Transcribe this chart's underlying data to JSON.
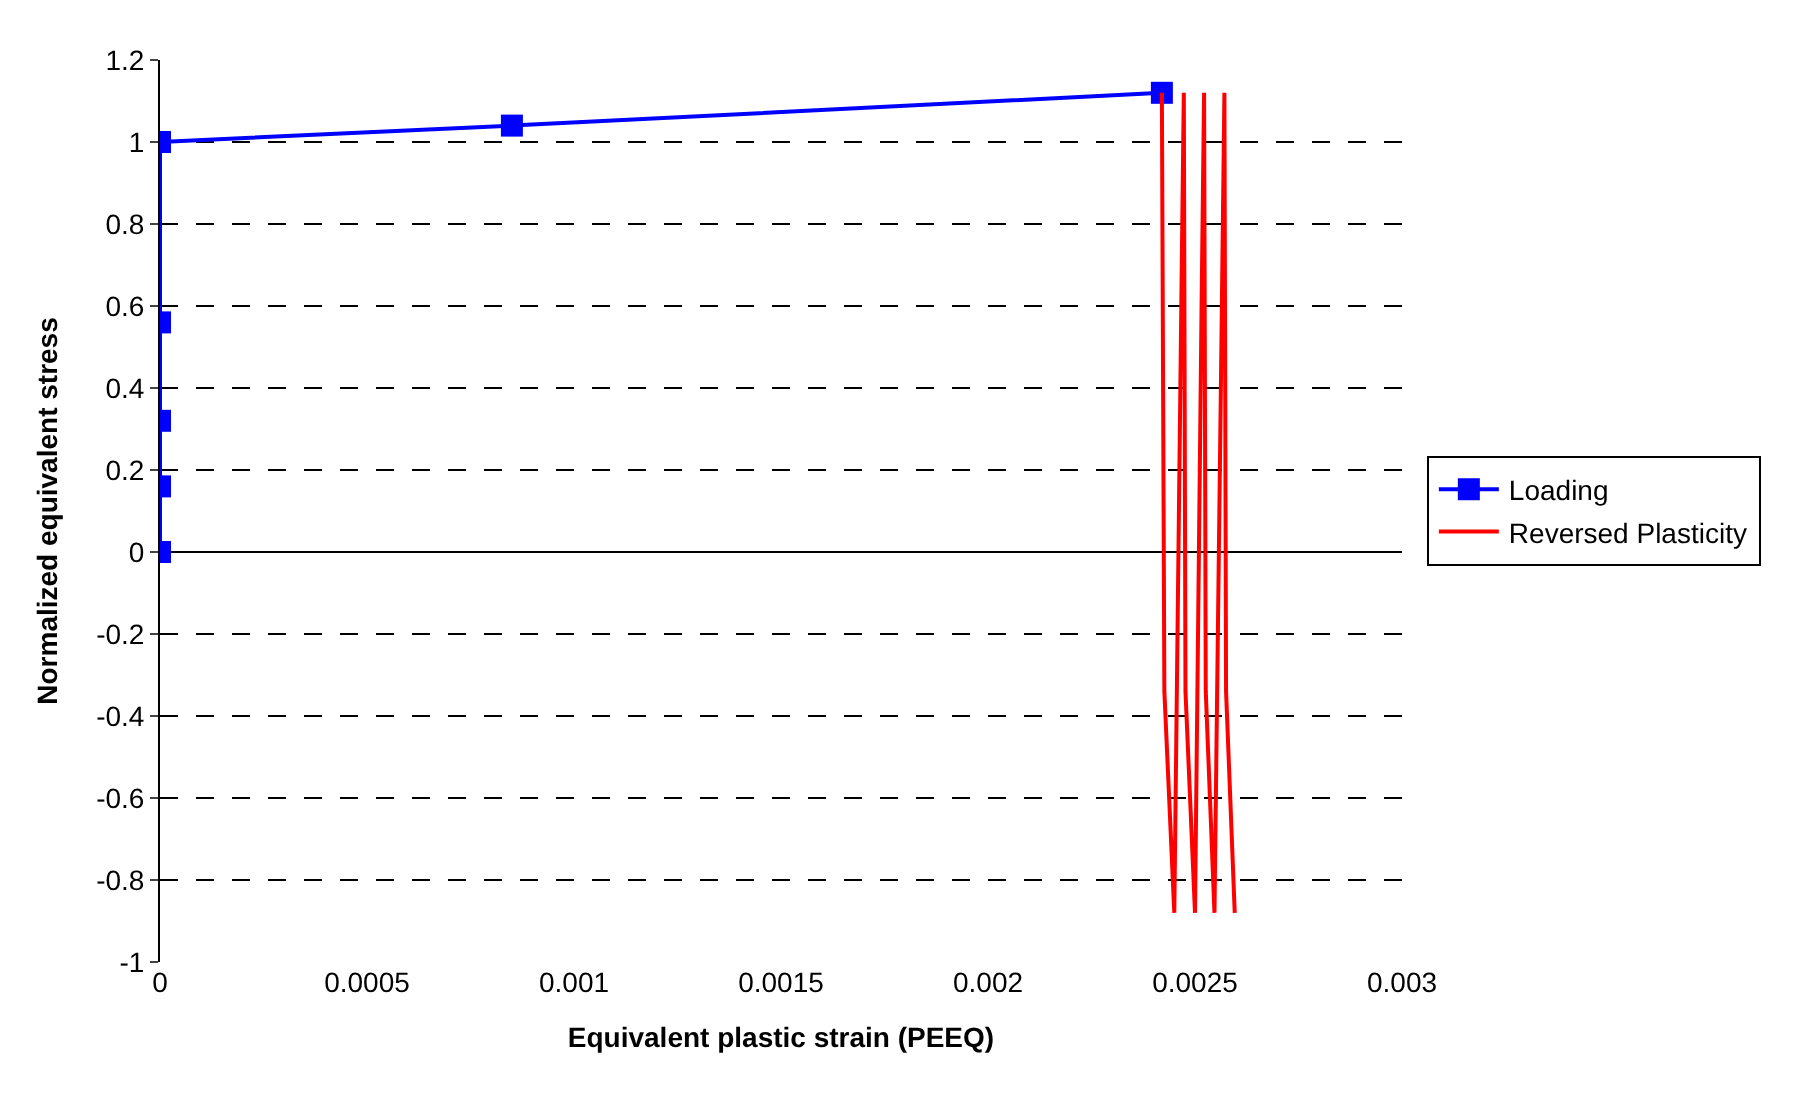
{
  "chart_data": {
    "type": "line",
    "xlabel": "Equivalent plastic strain (PEEQ)",
    "ylabel": "Normalized equivalent stress",
    "xlim": [
      0,
      0.003
    ],
    "xticks": [
      0,
      0.0005,
      0.001,
      0.0015,
      0.002,
      0.0025,
      0.003
    ],
    "ylim": [
      -1,
      1.2
    ],
    "yticks": [
      -1,
      -0.8,
      -0.6,
      -0.4,
      -0.2,
      0,
      0.2,
      0.4,
      0.6,
      0.8,
      1,
      1.2
    ],
    "grid": "y",
    "legend": "right",
    "line_style": "solid",
    "series": [
      {
        "name": "Loading",
        "color": "#0000ff",
        "marker": "square",
        "x": [
          0,
          0,
          0,
          0,
          0,
          0.00085,
          0.00242
        ],
        "values": [
          0,
          0.16,
          0.32,
          0.56,
          1.0,
          1.04,
          1.12
        ]
      },
      {
        "name": "Reversed Plasticity",
        "color": "#ff0000",
        "marker": "none",
        "x": [
          0.00242,
          0.002426,
          0.00245,
          0.002467,
          0.002473,
          0.002477,
          0.0025,
          0.002516,
          0.002522,
          0.002526,
          0.002547,
          0.002565,
          0.002571,
          0.002575,
          0.002596
        ],
        "values": [
          1.12,
          -0.34,
          -0.88,
          0.61,
          1.12,
          -0.34,
          -0.88,
          0.61,
          1.12,
          -0.34,
          -0.88,
          0.61,
          1.12,
          -0.34,
          -0.88
        ]
      }
    ]
  }
}
